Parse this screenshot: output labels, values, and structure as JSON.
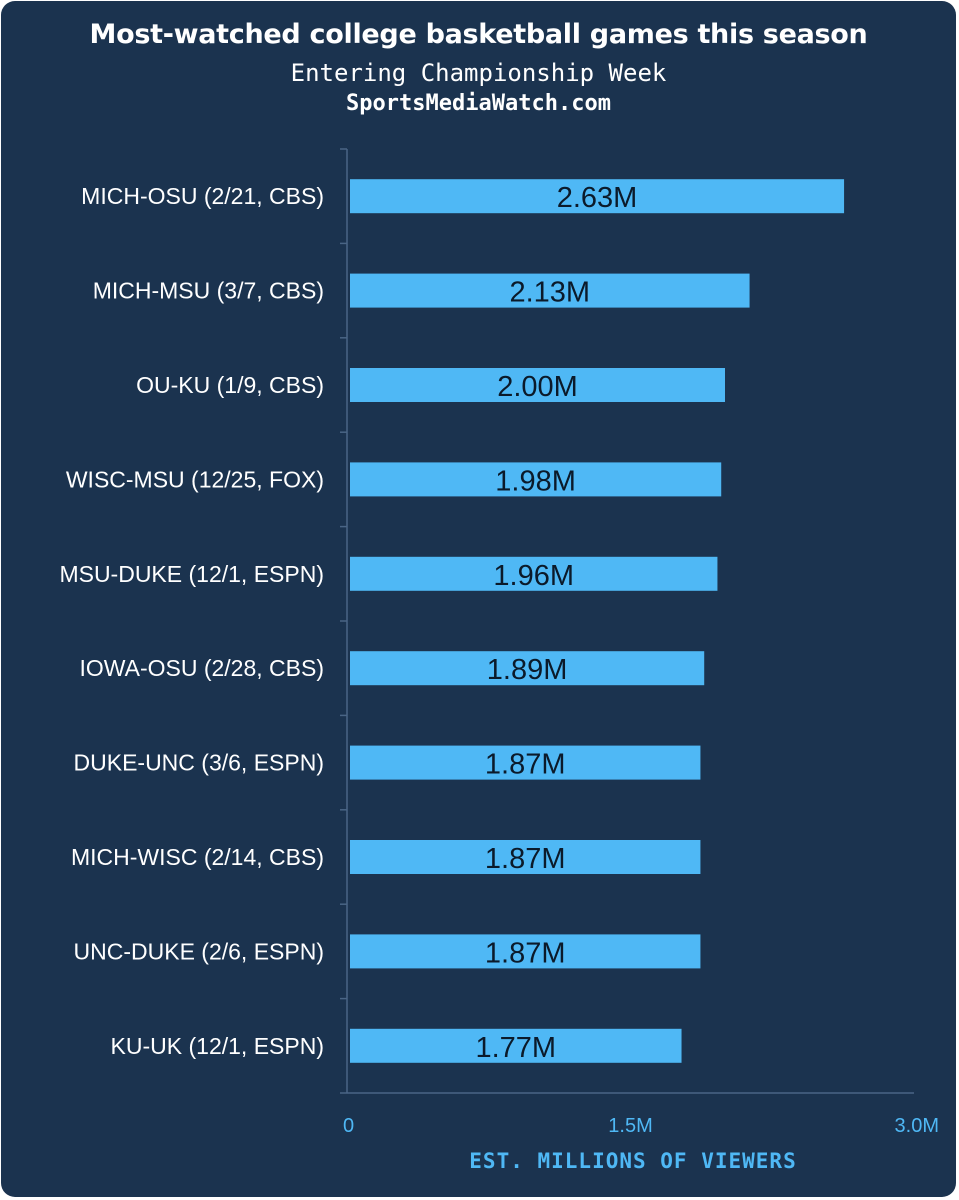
{
  "chart_data": {
    "type": "bar",
    "orientation": "horizontal",
    "title": "Most-watched college basketball games this season",
    "subtitle": "Entering Championship Week",
    "source": "SportsMediaWatch.com",
    "xlabel": "EST. MILLIONS OF VIEWERS",
    "ylabel": "",
    "xlim": [
      0,
      3.0
    ],
    "ticks": [
      0,
      1.5,
      3.0
    ],
    "tick_labels": [
      "0",
      "1.5M",
      "3.0M"
    ],
    "grid": false,
    "categories": [
      "MICH-OSU (2/21, CBS)",
      "MICH-MSU (3/7, CBS)",
      "OU-KU (1/9, CBS)",
      "WISC-MSU (12/25, FOX)",
      "MSU-DUKE (12/1, ESPN)",
      "IOWA-OSU (2/28, CBS)",
      "DUKE-UNC (3/6, ESPN)",
      "MICH-WISC (2/14, CBS)",
      "UNC-DUKE (2/6, ESPN)",
      "KU-UK (12/1, ESPN)"
    ],
    "values": [
      2.63,
      2.13,
      2.0,
      1.98,
      1.96,
      1.89,
      1.87,
      1.87,
      1.87,
      1.77
    ],
    "data_labels": [
      "2.63M",
      "2.13M",
      "2.00M",
      "1.98M",
      "1.96M",
      "1.89M",
      "1.87M",
      "1.87M",
      "1.87M",
      "1.77M"
    ],
    "colors": {
      "background": "#1b334f",
      "bar": "#4fb8f5",
      "axis": "#4fb8f5",
      "text": "#ffffff",
      "data_label": "#0b1a2a"
    }
  }
}
